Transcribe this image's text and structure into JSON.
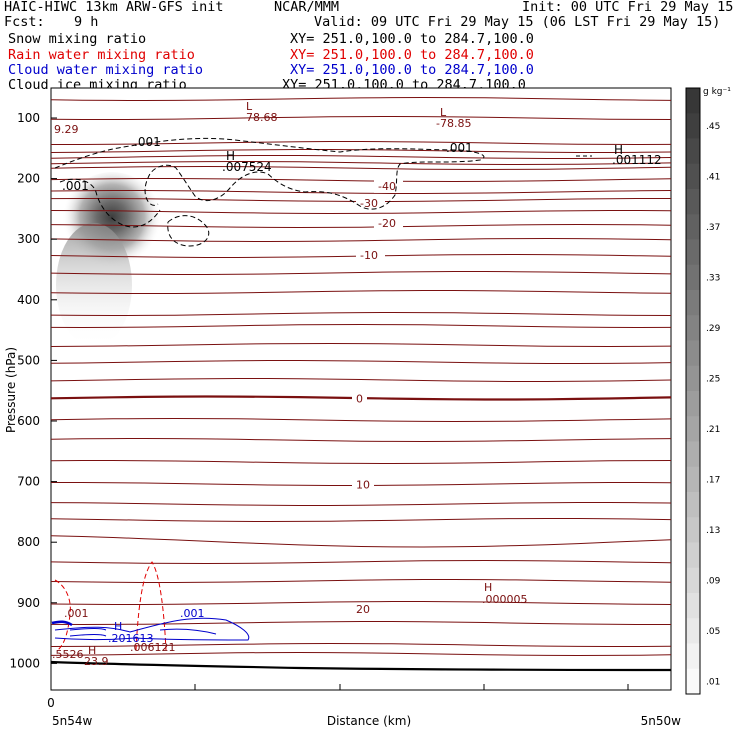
{
  "header": {
    "title": "HAIC-HIWC 13km ARW-GFS init",
    "org": "NCAR/MMM",
    "init": "Init: 00 UTC Fri 29 May 15",
    "fcst_label": "Fcst:",
    "fcst_value": "9 h",
    "valid": "Valid: 09 UTC Fri 29 May 15 (06 LST Fri 29 May 15)"
  },
  "fields": [
    {
      "label": "Snow mixing ratio",
      "xy": "XY= 251.0,100.0 to 284.7,100.0",
      "color": "#000000"
    },
    {
      "label": "Rain water mixing ratio",
      "xy": "XY= 251.0,100.0 to 284.7,100.0",
      "color": "#e00000"
    },
    {
      "label": "Cloud water mixing ratio",
      "xy": "XY= 251.0,100.0 to 284.7,100.0",
      "color": "#0000cc"
    },
    {
      "label": "Cloud ice mixing ratio",
      "xy": "XY= 251.0,100.0 to 284.7,100.0",
      "color": "#000000"
    }
  ],
  "chart_data": {
    "type": "heatmap",
    "ylabel": "Pressure (hPa)",
    "xlabel": "Distance (km)",
    "x_ticks": [
      "0"
    ],
    "x_end_labels": [
      "5n54w",
      "5n50w"
    ],
    "y_ticks": [
      100,
      200,
      300,
      400,
      500,
      600,
      700,
      800,
      900,
      1000
    ],
    "ylim": [
      1060,
      80
    ],
    "colorbar": {
      "unit": "g kg⁻¹",
      "labels": [
        ".45",
        ".41",
        ".37",
        ".33",
        ".29",
        ".25",
        ".21",
        ".17",
        ".13",
        ".09",
        ".05",
        ".01"
      ]
    },
    "temperature_labels": [
      {
        "value": "-40",
        "p": 212
      },
      {
        "value": "-30",
        "p": 240
      },
      {
        "value": "-20",
        "p": 273
      },
      {
        "value": "-10",
        "p": 326
      },
      {
        "value": "0",
        "p": 563
      },
      {
        "value": "10",
        "p": 705
      },
      {
        "value": "20",
        "p": 910
      }
    ],
    "extrema_labels": [
      {
        "letter": "L",
        "value": "-78.68",
        "p": 107,
        "km": 0.58
      },
      {
        "letter": "L",
        "value": "-78.85",
        "p": 113,
        "km": 0.66
      },
      {
        "letter": "H",
        "value": ".007524",
        "p": 160,
        "km": 0.3
      },
      {
        "letter": "H",
        "value": ".001112",
        "p": 155,
        "km": 0.92
      },
      {
        "letter": "H",
        "value": ".000005",
        "p": 873,
        "km": 0.75
      },
      {
        "letter": "H",
        "value": ".201613",
        "p": 938,
        "km": 0.11
      },
      {
        "letter": "H",
        "value": "23.9",
        "p": 985,
        "km": 0.07
      }
    ],
    "contour_labels": [
      ".001",
      ".001",
      ".001",
      ".001",
      ".001",
      "9.29",
      ".006121",
      ".5526"
    ]
  }
}
